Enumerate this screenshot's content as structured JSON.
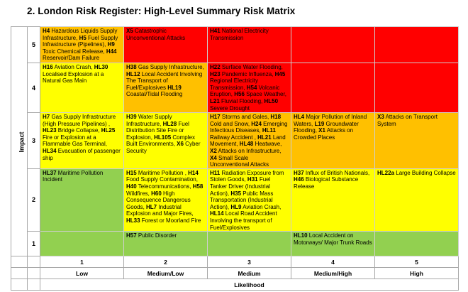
{
  "title": "2. London Risk Register: High-Level Summary Risk Matrix",
  "colors": {
    "red": "#FF0000",
    "orange": "#FFC000",
    "yellow": "#FFFF00",
    "green": "#92D050"
  },
  "axes": {
    "impact_label": "Impact",
    "likelihood_label": "Likelihood",
    "col_numbers": [
      "1",
      "2",
      "3",
      "4",
      "5"
    ],
    "col_labels": [
      "Low",
      "Medium/Low",
      "Medium",
      "Medium/High",
      "High"
    ]
  },
  "matrix": {
    "rows": [
      {
        "impact": "5",
        "cells": [
          {
            "color": "orange",
            "segments": [
              "H4",
              " Hazardous Liquids Supply Infrastructure, ",
              "H5",
              " Fuel Supply Infrastructure (Pipelines), ",
              "H9",
              " Toxic Chemical Release, ",
              "H44",
              " Reservoir/Dam Failure"
            ]
          },
          {
            "color": "red",
            "segments": [
              "X5",
              " Catastrophic Unconventional Attacks"
            ]
          },
          {
            "color": "red",
            "segments": [
              "H41",
              " National Electricity Transmission"
            ]
          },
          {
            "color": "red",
            "segments": []
          },
          {
            "color": "red",
            "segments": []
          }
        ]
      },
      {
        "impact": "4",
        "cells": [
          {
            "color": "yellow",
            "segments": [
              "H16",
              " Aviation Crash, ",
              "HL30",
              " Localised Explosion at a Natural Gas Main"
            ]
          },
          {
            "color": "orange",
            "segments": [
              "H38",
              " Gas Supply Infrastructure, ",
              "HL12",
              " Local Accident Involving The Transport of Fuel/Explosives ",
              "HL19",
              " Coastal/Tidal Flooding"
            ]
          },
          {
            "color": "red",
            "segments": [
              "H22",
              " Surface Water Flooding, ",
              "H23",
              " Pandemic Influenza, ",
              "H45",
              " Regional Electricity Transmission, ",
              "H54",
              " Volcanic Eruption, ",
              "H56",
              " Space Weather, ",
              "L21",
              " Fluvial Flooding, ",
              "HL50",
              " Severe Drought"
            ]
          },
          {
            "color": "red",
            "segments": []
          },
          {
            "color": "red",
            "segments": []
          }
        ]
      },
      {
        "impact": "3",
        "cells": [
          {
            "color": "yellow",
            "segments": [
              "H7",
              " Gas Supply Infrastructure (High Pressure Pipelines) , ",
              "HL23",
              " Bridge Collapse, ",
              "HL25",
              " Fire or Explosion at a Flammable Gas Terminal, ",
              "HL34",
              " Evacuation of passenger ship"
            ]
          },
          {
            "color": "yellow",
            "segments": [
              "H39",
              " Water Supply Infrastructure, ",
              "HL28",
              " Fuel Distribution Site Fire or Explosion, ",
              "HL105",
              " Complex Built Environments, ",
              "X6",
              " Cyber Security"
            ]
          },
          {
            "color": "orange",
            "segments": [
              "H17",
              " Storms and Gales, ",
              "H18",
              " Cold and Snow, ",
              "H24",
              " Emerging Infectious Diseases, ",
              "HL11",
              " Railway Accident , ",
              "HL21",
              " Land Movement, ",
              "HL48",
              " Heatwave, ",
              "X2",
              " Attacks on Infrastructure, ",
              "X4",
              " Small Scale Unconventional Attacks"
            ]
          },
          {
            "color": "orange",
            "segments": [
              "HL4",
              " Major Pollution of Inland Waters, ",
              "L19",
              " Groundwater Flooding, ",
              "X1",
              " Attacks on Crowded Places"
            ]
          },
          {
            "color": "orange",
            "segments": [
              "X3",
              " Attacks on Transport System"
            ]
          }
        ]
      },
      {
        "impact": "2",
        "cells": [
          {
            "color": "green",
            "segments": [
              "HL37",
              " Maritime Pollution Incident"
            ]
          },
          {
            "color": "yellow",
            "segments": [
              "H15",
              " Maritime Pollution , ",
              "H14",
              " Food Supply Contamination, ",
              "H40",
              " Telecommunications, ",
              "H58",
              " Wildfires, ",
              "H60",
              " High Consequence Dangerous Goods, ",
              "HL7",
              " Industrial Explosion and Major Fires, ",
              "HL33",
              " Forest or Moorland Fire"
            ]
          },
          {
            "color": "yellow",
            "segments": [
              "H11",
              " Radiation Exposure from Stolen Goods, ",
              "H31",
              " Fuel Tanker Driver (Industrial Action), ",
              "H35",
              " Public Mass Transportation (Industrial Action), ",
              "HL9",
              " Aviation Crash, ",
              "HL14",
              " Local Road Accident Involving the transport of Fuel/Explosives"
            ]
          },
          {
            "color": "yellow",
            "segments": [
              "H37",
              " Influx of British Nationals, ",
              "H46",
              " Biological Substance Release"
            ]
          },
          {
            "color": "yellow",
            "segments": [
              "HL22a",
              " Large Building Collapse"
            ]
          }
        ]
      },
      {
        "impact": "1",
        "cells": [
          {
            "color": "green",
            "segments": []
          },
          {
            "color": "green",
            "segments": [
              "H57",
              " Public Disorder"
            ]
          },
          {
            "color": "green",
            "segments": []
          },
          {
            "color": "green",
            "segments": [
              "HL10",
              " Local Accident on Motorways/ Major Trunk Roads"
            ]
          },
          {
            "color": "green",
            "segments": []
          }
        ]
      }
    ]
  }
}
